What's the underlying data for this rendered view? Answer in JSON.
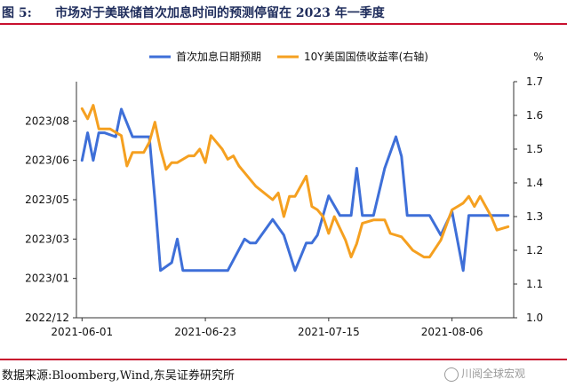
{
  "figure": {
    "label": "图 5:",
    "title": "市场对于美联储首次加息时间的预测停留在 2023 年一季度",
    "source": "数据来源:Bloomberg,Wind,东吴证券研究所",
    "watermark": "川阅全球宏观"
  },
  "chart_data": {
    "type": "line",
    "title": "",
    "x_tick_labels": [
      "2021-06-01",
      "2021-06-23",
      "2021-07-15",
      "2021-08-06"
    ],
    "left_axis": {
      "label": "",
      "tick_labels": [
        "2022/12",
        "2023/01",
        "2023/03",
        "2023/05",
        "2023/06",
        "2023/08"
      ],
      "ylim": [
        0,
        6
      ]
    },
    "right_axis": {
      "label": "%",
      "tick_labels": [
        "1.0",
        "1.1",
        "1.2",
        "1.3",
        "1.4",
        "1.5",
        "1.6",
        "1.7"
      ],
      "ylim": [
        1.0,
        1.7
      ]
    },
    "legend_position": "top",
    "grid": false,
    "series": [
      {
        "name": "首次加息日期预期",
        "axis": "left",
        "color": "#3e6fd8",
        "x": [
          "2021-06-01",
          "2021-06-02",
          "2021-06-03",
          "2021-06-04",
          "2021-06-05",
          "2021-06-07",
          "2021-06-08",
          "2021-06-10",
          "2021-06-11",
          "2021-06-13",
          "2021-06-14",
          "2021-06-15",
          "2021-06-17",
          "2021-06-18",
          "2021-06-19",
          "2021-06-21",
          "2021-06-23",
          "2021-06-25",
          "2021-06-27",
          "2021-06-30",
          "2021-07-01",
          "2021-07-02",
          "2021-07-05",
          "2021-07-07",
          "2021-07-09",
          "2021-07-11",
          "2021-07-12",
          "2021-07-13",
          "2021-07-15",
          "2021-07-17",
          "2021-07-18",
          "2021-07-19",
          "2021-07-20",
          "2021-07-21",
          "2021-07-23",
          "2021-07-25",
          "2021-07-27",
          "2021-07-28",
          "2021-07-29",
          "2021-07-30",
          "2021-08-02",
          "2021-08-04",
          "2021-08-06",
          "2021-08-08",
          "2021-08-09",
          "2021-08-10",
          "2021-08-11",
          "2021-08-13",
          "2021-08-14",
          "2021-08-16"
        ],
        "y": [
          4.0,
          4.7,
          4.0,
          4.7,
          4.7,
          4.6,
          5.3,
          4.6,
          4.6,
          4.6,
          3.0,
          1.2,
          1.4,
          2.0,
          1.2,
          1.2,
          1.2,
          1.2,
          1.2,
          2.0,
          1.9,
          1.9,
          2.5,
          2.1,
          1.2,
          1.9,
          1.9,
          2.1,
          3.1,
          2.6,
          2.6,
          2.6,
          3.8,
          2.6,
          2.6,
          3.8,
          4.6,
          4.1,
          2.6,
          2.6,
          2.6,
          2.1,
          2.7,
          1.2,
          2.6,
          2.6,
          2.6,
          2.6,
          2.6,
          2.6
        ]
      },
      {
        "name": "10Y美国国债收益率(右轴)",
        "axis": "right",
        "color": "#f5a020",
        "x": [
          "2021-06-01",
          "2021-06-02",
          "2021-06-03",
          "2021-06-04",
          "2021-06-05",
          "2021-06-06",
          "2021-06-08",
          "2021-06-09",
          "2021-06-10",
          "2021-06-12",
          "2021-06-13",
          "2021-06-14",
          "2021-06-15",
          "2021-06-16",
          "2021-06-17",
          "2021-06-18",
          "2021-06-20",
          "2021-06-21",
          "2021-06-22",
          "2021-06-23",
          "2021-06-24",
          "2021-06-26",
          "2021-06-27",
          "2021-06-28",
          "2021-06-29",
          "2021-06-30",
          "2021-07-02",
          "2021-07-05",
          "2021-07-06",
          "2021-07-07",
          "2021-07-08",
          "2021-07-09",
          "2021-07-11",
          "2021-07-12",
          "2021-07-13",
          "2021-07-14",
          "2021-07-15",
          "2021-07-16",
          "2021-07-18",
          "2021-07-19",
          "2021-07-20",
          "2021-07-21",
          "2021-07-23",
          "2021-07-25",
          "2021-07-26",
          "2021-07-28",
          "2021-07-29",
          "2021-07-30",
          "2021-08-01",
          "2021-08-02",
          "2021-08-04",
          "2021-08-06",
          "2021-08-07",
          "2021-08-08",
          "2021-08-09",
          "2021-08-10",
          "2021-08-11",
          "2021-08-13",
          "2021-08-14",
          "2021-08-16"
        ],
        "y": [
          1.62,
          1.59,
          1.63,
          1.56,
          1.56,
          1.56,
          1.54,
          1.45,
          1.49,
          1.49,
          1.52,
          1.58,
          1.5,
          1.44,
          1.46,
          1.46,
          1.48,
          1.48,
          1.5,
          1.46,
          1.54,
          1.5,
          1.47,
          1.48,
          1.45,
          1.43,
          1.39,
          1.35,
          1.37,
          1.3,
          1.36,
          1.36,
          1.42,
          1.33,
          1.32,
          1.3,
          1.25,
          1.3,
          1.23,
          1.18,
          1.22,
          1.28,
          1.29,
          1.29,
          1.25,
          1.24,
          1.22,
          1.2,
          1.18,
          1.18,
          1.23,
          1.32,
          1.33,
          1.34,
          1.36,
          1.33,
          1.36,
          1.3,
          1.26,
          1.27
        ]
      }
    ]
  }
}
